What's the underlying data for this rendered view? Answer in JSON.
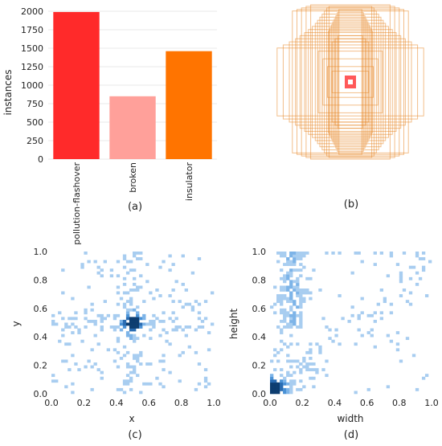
{
  "chart_data": [
    {
      "panel": "(a)",
      "type": "bar",
      "ylabel": "instances",
      "categories": [
        "pollution-flashover",
        "broken",
        "insulator"
      ],
      "values": [
        1990,
        850,
        1460
      ],
      "colors": [
        "#ff2a2a",
        "#ffa09a",
        "#ff7400"
      ],
      "ylim": [
        0,
        2000
      ],
      "yticks": [
        0,
        250,
        500,
        750,
        1000,
        1250,
        1500,
        1750,
        2000
      ]
    },
    {
      "panel": "(b)",
      "type": "scatter",
      "description_colors": {
        "box": "#e8892a",
        "center": "#ff3030"
      },
      "boxes_wh": [
        [
          0.15,
          0.94
        ],
        [
          0.17,
          0.9
        ],
        [
          0.19,
          0.86
        ],
        [
          0.21,
          0.82
        ],
        [
          0.23,
          0.78
        ],
        [
          0.25,
          0.74
        ],
        [
          0.27,
          0.7
        ],
        [
          0.29,
          0.66
        ],
        [
          0.16,
          0.6
        ],
        [
          0.2,
          0.56
        ],
        [
          0.24,
          0.52
        ],
        [
          0.28,
          0.98
        ],
        [
          0.31,
          0.96
        ],
        [
          0.34,
          0.92
        ],
        [
          0.37,
          0.88
        ],
        [
          0.4,
          0.84
        ],
        [
          0.43,
          0.8
        ],
        [
          0.46,
          0.76
        ],
        [
          0.5,
          0.72
        ],
        [
          0.55,
          0.68
        ],
        [
          0.6,
          0.64
        ],
        [
          0.66,
          0.6
        ],
        [
          0.72,
          0.56
        ],
        [
          0.8,
          0.52
        ],
        [
          0.88,
          0.48
        ],
        [
          0.96,
          0.44
        ],
        [
          0.52,
          1.0
        ],
        [
          0.58,
          0.98
        ],
        [
          0.64,
          0.96
        ],
        [
          0.7,
          0.94
        ],
        [
          0.76,
          0.92
        ],
        [
          0.42,
          0.4
        ],
        [
          0.36,
          0.3
        ],
        [
          0.3,
          0.2
        ],
        [
          0.24,
          0.14
        ]
      ]
    },
    {
      "panel": "(c)",
      "type": "heatmap",
      "xlabel": "x",
      "ylabel": "y",
      "xlim": [
        0,
        1
      ],
      "ylim": [
        0,
        1
      ],
      "xticks": [
        0.0,
        0.2,
        0.4,
        0.6,
        0.8,
        1.0
      ],
      "yticks": [
        0.0,
        0.2,
        0.4,
        0.6,
        0.8,
        1.0
      ],
      "peak": {
        "x": 0.5,
        "y": 0.5
      },
      "bins": 50
    },
    {
      "panel": "(d)",
      "type": "heatmap",
      "xlabel": "width",
      "ylabel": "height",
      "xlim": [
        0,
        1
      ],
      "ylim": [
        0,
        1
      ],
      "xticks": [
        0.0,
        0.2,
        0.4,
        0.6,
        0.8,
        1.0
      ],
      "yticks": [
        0.0,
        0.2,
        0.4,
        0.6,
        0.8,
        1.0
      ],
      "peak": {
        "x": 0.02,
        "y": 0.03
      },
      "bins": 50
    }
  ]
}
